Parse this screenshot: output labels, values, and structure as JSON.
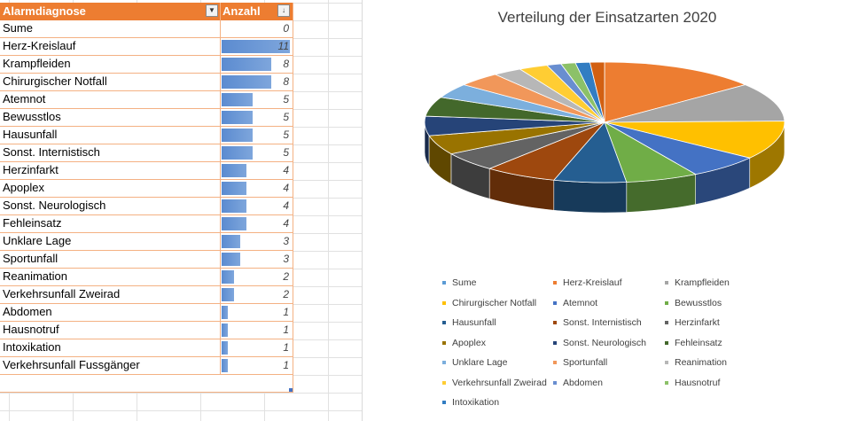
{
  "table": {
    "header_name": "Alarmdiagnose",
    "header_count": "Anzahl",
    "filter_icon_name": "filter-dropdown-icon",
    "sort_icon_name": "sort-descending-icon",
    "max_value": 11,
    "rows": [
      {
        "name": "Sume",
        "value": "0",
        "n": 0
      },
      {
        "name": "Herz-Kreislauf",
        "value": "11",
        "n": 11
      },
      {
        "name": "Krampfleiden",
        "value": "8",
        "n": 8
      },
      {
        "name": "Chirurgischer Notfall",
        "value": "8",
        "n": 8
      },
      {
        "name": "Atemnot",
        "value": "5",
        "n": 5
      },
      {
        "name": "Bewusstlos",
        "value": "5",
        "n": 5
      },
      {
        "name": "Hausunfall",
        "value": "5",
        "n": 5
      },
      {
        "name": "Sonst. Internistisch",
        "value": "5",
        "n": 5
      },
      {
        "name": "Herzinfarkt",
        "value": "4",
        "n": 4
      },
      {
        "name": "Apoplex",
        "value": "4",
        "n": 4
      },
      {
        "name": "Sonst. Neurologisch",
        "value": "4",
        "n": 4
      },
      {
        "name": "Fehleinsatz",
        "value": "4",
        "n": 4
      },
      {
        "name": "Unklare Lage",
        "value": "3",
        "n": 3
      },
      {
        "name": "Sportunfall",
        "value": "3",
        "n": 3
      },
      {
        "name": "Reanimation",
        "value": "2",
        "n": 2
      },
      {
        "name": "Verkehrsunfall Zweirad",
        "value": "2",
        "n": 2
      },
      {
        "name": "Abdomen",
        "value": "1",
        "n": 1
      },
      {
        "name": "Hausnotruf",
        "value": "1",
        "n": 1
      },
      {
        "name": "Intoxikation",
        "value": "1",
        "n": 1
      },
      {
        "name": "Verkehrsunfall Fussgänger",
        "value": "1",
        "n": 1
      }
    ]
  },
  "chart_data": {
    "type": "pie",
    "title": "Verteilung der Einsatzarten 2020",
    "categories": [
      "Sume",
      "Herz-Kreislauf",
      "Krampfleiden",
      "Chirurgischer Notfall",
      "Atemnot",
      "Bewusstlos",
      "Hausunfall",
      "Sonst. Internistisch",
      "Herzinfarkt",
      "Apoplex",
      "Sonst. Neurologisch",
      "Fehleinsatz",
      "Unklare Lage",
      "Sportunfall",
      "Reanimation",
      "Verkehrsunfall Zweirad",
      "Abdomen",
      "Hausnotruf",
      "Intoxikation",
      "Verkehrsunfall Fussgänger"
    ],
    "values": [
      0,
      11,
      8,
      8,
      5,
      5,
      5,
      5,
      4,
      4,
      4,
      4,
      3,
      3,
      2,
      2,
      1,
      1,
      1,
      1
    ],
    "colors": [
      "#5b9bd5",
      "#ed7d31",
      "#a5a5a5",
      "#ffc000",
      "#4472c4",
      "#70ad47",
      "#255e91",
      "#9e480e",
      "#636363",
      "#997300",
      "#264478",
      "#43682b",
      "#7cafdd",
      "#f1975a",
      "#b7b7b7",
      "#ffcd33",
      "#698ed0",
      "#8cc168",
      "#327dc2",
      "#d26012"
    ],
    "legend": [
      "Sume",
      "Herz-Kreislauf",
      "Krampfleiden",
      "Chirurgischer Notfall",
      "Atemnot",
      "Bewusstlos",
      "Hausunfall",
      "Sonst. Internistisch",
      "Herzinfarkt",
      "Apoplex",
      "Sonst. Neurologisch",
      "Fehleinsatz",
      "Unklare Lage",
      "Sportunfall",
      "Reanimation",
      "Verkehrsunfall Zweirad",
      "Abdomen",
      "Hausnotruf",
      "Intoxikation"
    ],
    "legend_placement": "bottom",
    "style": "3d"
  }
}
